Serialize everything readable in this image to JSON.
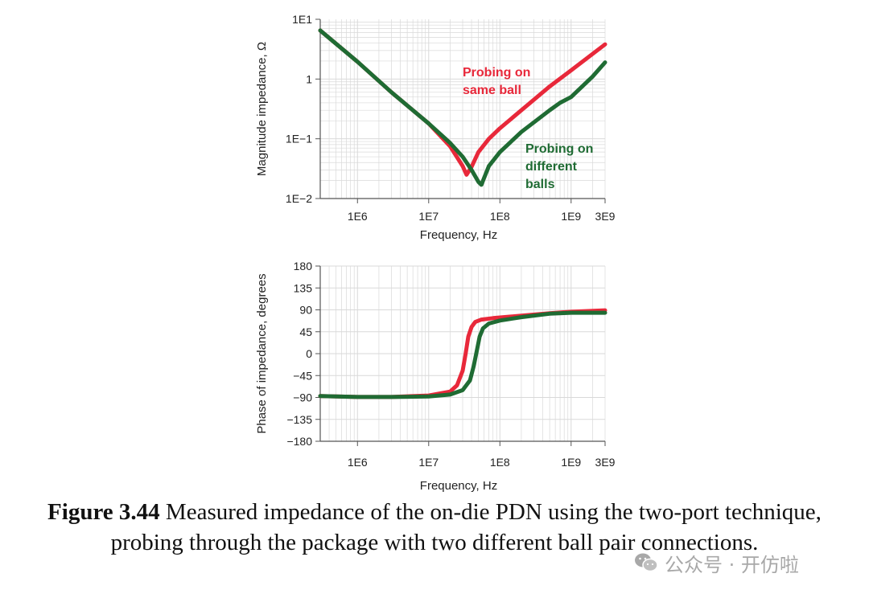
{
  "colors": {
    "same_ball": "#e8283a",
    "different_balls": "#1f6b33",
    "grid": "#d9d9d9",
    "axis": "#555555"
  },
  "chart_data": [
    {
      "type": "line",
      "x_scale": "log",
      "y_scale": "log",
      "xlabel": "Frequency, Hz",
      "ylabel": "Magnitude impedance, Ω",
      "xlim": [
        300000,
        3000000000
      ],
      "ylim": [
        0.01,
        10
      ],
      "x_ticks": [
        "1E6",
        "1E7",
        "1E8",
        "1E9",
        "3E9"
      ],
      "y_ticks": [
        "1E1",
        "1",
        "1E−1",
        "1E−2"
      ],
      "grid": true,
      "annotations": [
        {
          "lines": [
            "Probing on",
            "same ball"
          ],
          "series": "same_ball"
        },
        {
          "lines": [
            "Probing on",
            "different",
            "balls"
          ],
          "series": "different_balls"
        }
      ],
      "series": [
        {
          "key": "same_ball",
          "x": [
            300000,
            1000000,
            3000000,
            10000000,
            20000000,
            30000000,
            34000000,
            40000000,
            50000000,
            70000000,
            100000000,
            200000000,
            500000000,
            1000000000,
            3000000000
          ],
          "y": [
            6.5,
            1.95,
            0.6,
            0.18,
            0.075,
            0.035,
            0.025,
            0.034,
            0.06,
            0.1,
            0.15,
            0.3,
            0.75,
            1.4,
            3.8
          ]
        },
        {
          "key": "different_balls",
          "x": [
            300000,
            1000000,
            3000000,
            10000000,
            20000000,
            30000000,
            40000000,
            50000000,
            55000000,
            60000000,
            70000000,
            100000000,
            200000000,
            500000000,
            700000000,
            1000000000,
            2000000000,
            3000000000
          ],
          "y": [
            6.5,
            1.95,
            0.6,
            0.18,
            0.085,
            0.05,
            0.03,
            0.019,
            0.017,
            0.022,
            0.035,
            0.06,
            0.13,
            0.3,
            0.4,
            0.5,
            1.1,
            1.9
          ]
        }
      ]
    },
    {
      "type": "line",
      "x_scale": "log",
      "xlabel": "Frequency, Hz",
      "ylabel": "Phase of impedance, degrees",
      "xlim": [
        300000,
        3000000000
      ],
      "ylim": [
        -180,
        180
      ],
      "x_ticks": [
        "1E6",
        "1E7",
        "1E8",
        "1E9",
        "3E9"
      ],
      "y_ticks": [
        "180",
        "135",
        "90",
        "45",
        "0",
        "−45",
        "−90",
        "−135",
        "−180"
      ],
      "grid": true,
      "series": [
        {
          "key": "same_ball",
          "x": [
            300000,
            1000000,
            3000000,
            10000000,
            20000000,
            25000000,
            30000000,
            33000000,
            36000000,
            40000000,
            45000000,
            55000000,
            80000000,
            200000000,
            500000000,
            1000000000,
            3000000000
          ],
          "y": [
            -87,
            -89,
            -89,
            -86,
            -78,
            -65,
            -35,
            0,
            35,
            55,
            65,
            70,
            73,
            78,
            83,
            86,
            89
          ]
        },
        {
          "key": "different_balls",
          "x": [
            300000,
            1000000,
            3000000,
            10000000,
            20000000,
            30000000,
            38000000,
            43000000,
            48000000,
            52000000,
            58000000,
            70000000,
            100000000,
            200000000,
            500000000,
            1000000000,
            3000000000
          ],
          "y": [
            -87,
            -89,
            -89,
            -88,
            -84,
            -75,
            -55,
            -25,
            10,
            35,
            52,
            62,
            68,
            75,
            82,
            84,
            84
          ]
        }
      ]
    }
  ],
  "caption": {
    "label": "Figure 3.44",
    "text": " Measured impedance of the on-die PDN using the two-port technique, probing through the package with two different ball pair connections."
  },
  "watermark": {
    "text": "公众号 · 开仿啦"
  }
}
